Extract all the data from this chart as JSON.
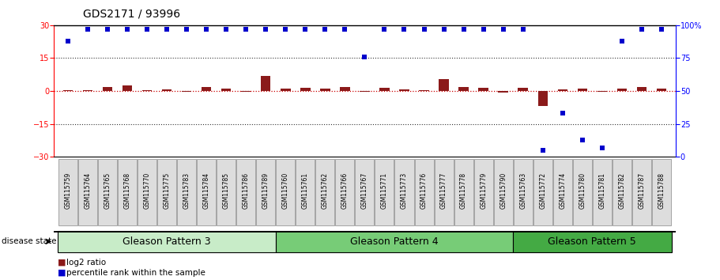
{
  "title": "GDS2171 / 93996",
  "samples": [
    "GSM115759",
    "GSM115764",
    "GSM115765",
    "GSM115768",
    "GSM115770",
    "GSM115775",
    "GSM115783",
    "GSM115784",
    "GSM115785",
    "GSM115786",
    "GSM115789",
    "GSM115760",
    "GSM115761",
    "GSM115762",
    "GSM115766",
    "GSM115767",
    "GSM115771",
    "GSM115773",
    "GSM115776",
    "GSM115777",
    "GSM115778",
    "GSM115779",
    "GSM115790",
    "GSM115763",
    "GSM115772",
    "GSM115774",
    "GSM115780",
    "GSM115781",
    "GSM115782",
    "GSM115787",
    "GSM115788"
  ],
  "log2_ratio": [
    0.2,
    0.4,
    1.8,
    2.5,
    0.4,
    0.8,
    -0.3,
    2.0,
    1.0,
    -0.3,
    7.0,
    1.0,
    1.5,
    1.0,
    2.0,
    -0.3,
    1.5,
    0.8,
    0.4,
    5.5,
    2.0,
    1.5,
    -0.8,
    1.5,
    -7.0,
    0.8,
    1.0,
    -0.4,
    1.2,
    2.0,
    1.0
  ],
  "percentile_rank": [
    88,
    97,
    97,
    97,
    97,
    97,
    97,
    97,
    97,
    97,
    97,
    97,
    97,
    97,
    97,
    76,
    97,
    97,
    97,
    97,
    97,
    97,
    97,
    97,
    5,
    33,
    13,
    7,
    88,
    97,
    97
  ],
  "groups": [
    {
      "label": "Gleason Pattern 3",
      "start": 0,
      "end": 11,
      "color": "#c8ecc8"
    },
    {
      "label": "Gleason Pattern 4",
      "start": 11,
      "end": 23,
      "color": "#77cc77"
    },
    {
      "label": "Gleason Pattern 5",
      "start": 23,
      "end": 31,
      "color": "#44aa44"
    }
  ],
  "ylim_left": [
    -30,
    30
  ],
  "ylim_right": [
    0,
    100
  ],
  "yticks_left": [
    -30,
    -15,
    0,
    15,
    30
  ],
  "yticks_right": [
    0,
    25,
    50,
    75,
    100
  ],
  "ytick_right_labels": [
    "0",
    "25",
    "50",
    "75",
    "100%"
  ],
  "bar_color": "#8B1A1A",
  "dot_color": "#0000CC",
  "bg_color": "#ffffff",
  "title_fontsize": 10,
  "tick_fontsize": 7,
  "sample_fontsize": 5.5,
  "legend_fontsize": 7.5,
  "group_fontsize": 9
}
